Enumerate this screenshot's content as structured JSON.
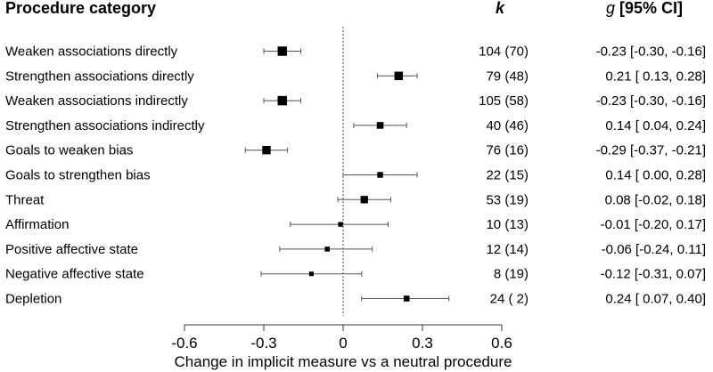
{
  "chart_data": {
    "type": "forest",
    "columns": {
      "category": "Procedure category",
      "k": "k",
      "g_italic": "g",
      "g_rest": " [95% CI]"
    },
    "rows": [
      {
        "label": "Weaken associations directly",
        "k_text": "104 (70)",
        "ci_text": "-0.23 [-0.30, -0.16]",
        "g": -0.23,
        "lo": -0.3,
        "hi": -0.16,
        "k": 104
      },
      {
        "label": "Strengthen associations directly",
        "k_text": "79 (48)",
        "ci_text": "0.21 [ 0.13,  0.28]",
        "g": 0.21,
        "lo": 0.13,
        "hi": 0.28,
        "k": 79
      },
      {
        "label": "Weaken associations indirectly",
        "k_text": "105 (58)",
        "ci_text": "-0.23 [-0.30, -0.16]",
        "g": -0.23,
        "lo": -0.3,
        "hi": -0.16,
        "k": 105
      },
      {
        "label": "Strengthen associations indirectly",
        "k_text": "40 (46)",
        "ci_text": "0.14 [ 0.04,  0.24]",
        "g": 0.14,
        "lo": 0.04,
        "hi": 0.24,
        "k": 40
      },
      {
        "label": "Goals to weaken bias",
        "k_text": "76 (16)",
        "ci_text": "-0.29 [-0.37, -0.21]",
        "g": -0.29,
        "lo": -0.37,
        "hi": -0.21,
        "k": 76
      },
      {
        "label": "Goals to strengthen bias",
        "k_text": "22 (15)",
        "ci_text": "0.14 [ 0.00,  0.28]",
        "g": 0.14,
        "lo": 0.0,
        "hi": 0.28,
        "k": 22
      },
      {
        "label": "Threat",
        "k_text": "53 (19)",
        "ci_text": "0.08 [-0.02,  0.18]",
        "g": 0.08,
        "lo": -0.02,
        "hi": 0.18,
        "k": 53
      },
      {
        "label": "Affirmation",
        "k_text": "10 (13)",
        "ci_text": "-0.01 [-0.20,  0.17]",
        "g": -0.01,
        "lo": -0.2,
        "hi": 0.17,
        "k": 10
      },
      {
        "label": "Positive affective state",
        "k_text": "12 (14)",
        "ci_text": "-0.06 [-0.24,  0.11]",
        "g": -0.06,
        "lo": -0.24,
        "hi": 0.11,
        "k": 12
      },
      {
        "label": "Negative affective state",
        "k_text": "8 (19)",
        "ci_text": "-0.12 [-0.31,  0.07]",
        "g": -0.12,
        "lo": -0.31,
        "hi": 0.07,
        "k": 8
      },
      {
        "label": "Depletion",
        "k_text": "24 ( 2)",
        "ci_text": "0.24 [ 0.07,  0.40]",
        "g": 0.24,
        "lo": 0.07,
        "hi": 0.4,
        "k": 24
      }
    ],
    "xlim": [
      -0.6,
      0.6
    ],
    "xticks": [
      -0.6,
      -0.3,
      0,
      0.3,
      0.6
    ],
    "xtick_labels": [
      "-0.6",
      "-0.3",
      "0",
      "0.3",
      "0.6"
    ],
    "reference_line": 0,
    "xlabel": "Change in implicit measure vs a neutral procedure"
  }
}
